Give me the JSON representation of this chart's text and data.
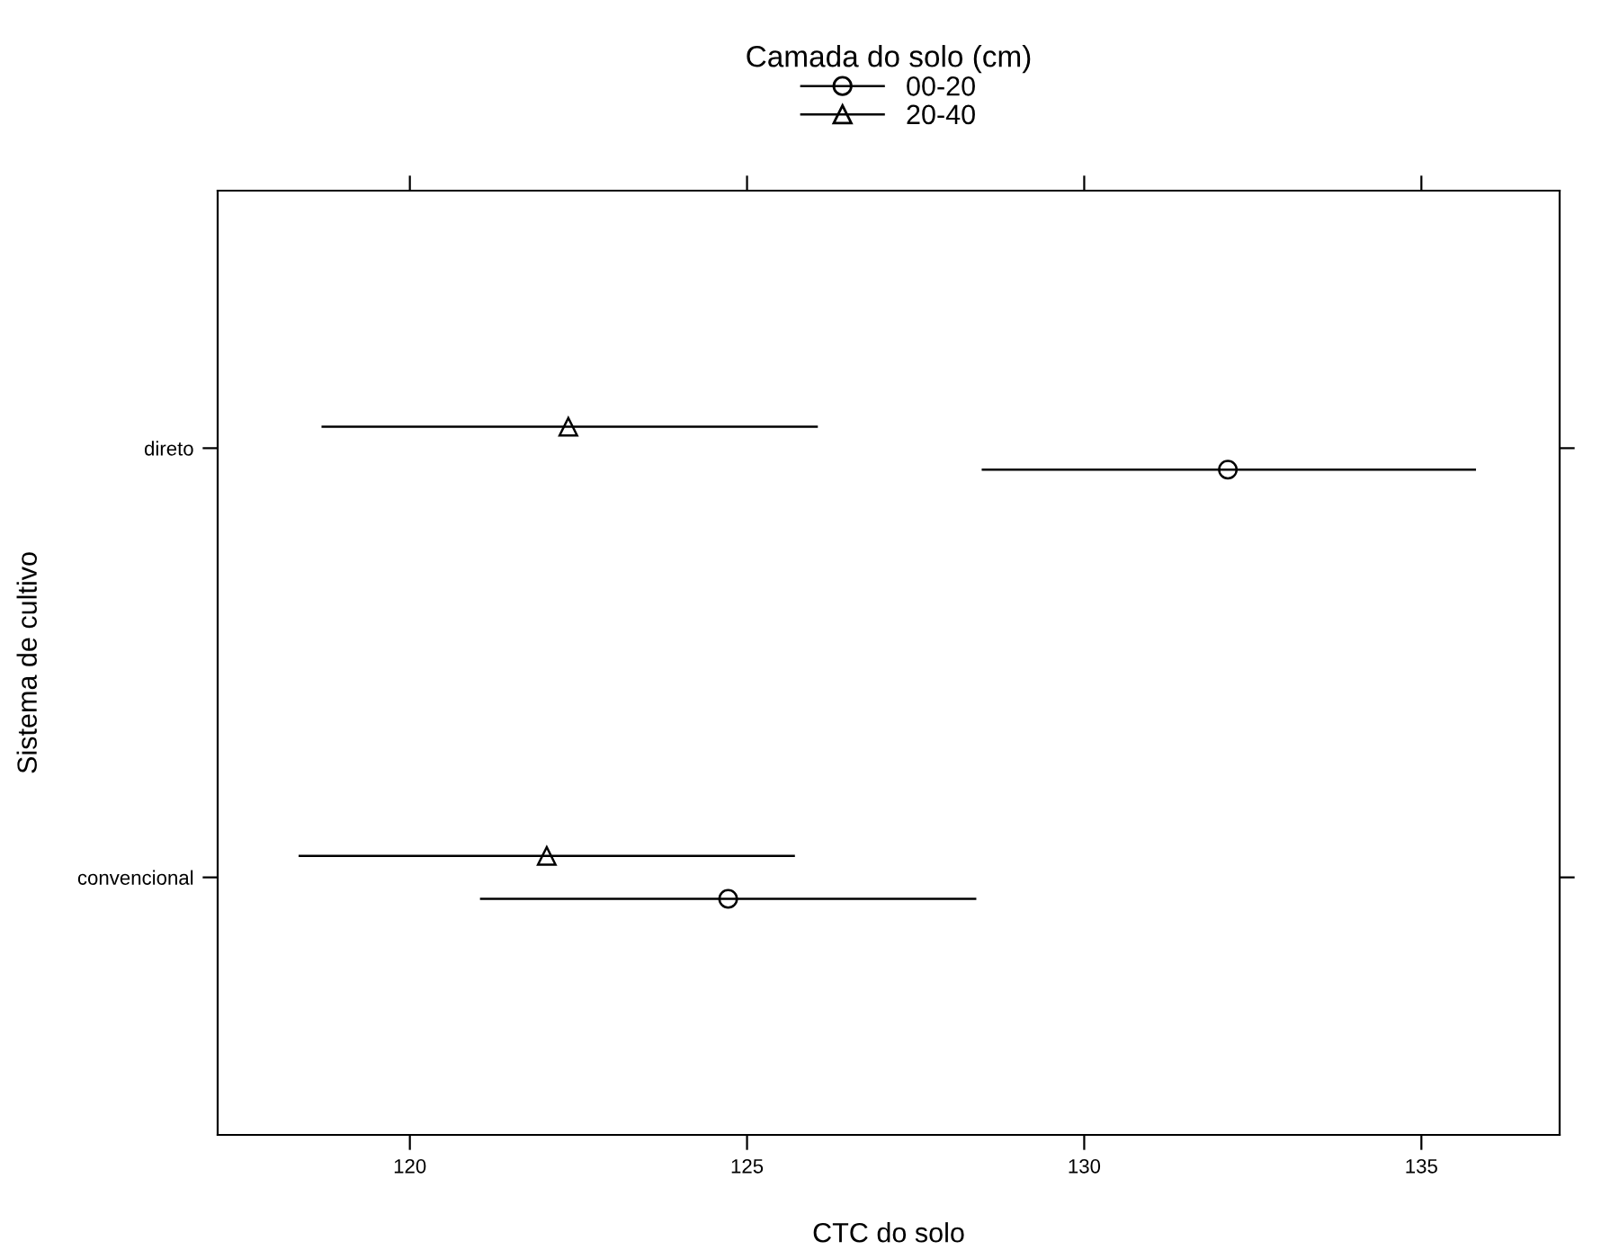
{
  "chart_data": {
    "type": "scatter",
    "orientation": "horizontal",
    "xlabel": "CTC do solo",
    "ylabel": "Sistema de cultivo",
    "legend_title": "Camada do solo (cm)",
    "legend": "top",
    "categories": [
      "direto",
      "convencional"
    ],
    "xlim": [
      117.15,
      137.05
    ],
    "xticks": [
      120,
      125,
      130,
      135
    ],
    "grid": false,
    "series": [
      {
        "name": "00-20",
        "color": "#000000",
        "marker": "circle",
        "values": [
          132.13,
          124.72
        ],
        "errors": [
          [
            128.48,
            135.81
          ],
          [
            121.04,
            128.4
          ]
        ]
      },
      {
        "name": "20-40",
        "color": "#000000",
        "marker": "triangle",
        "values": [
          122.35,
          122.03
        ],
        "errors": [
          [
            118.69,
            126.05
          ],
          [
            118.35,
            125.71
          ]
        ]
      }
    ]
  }
}
